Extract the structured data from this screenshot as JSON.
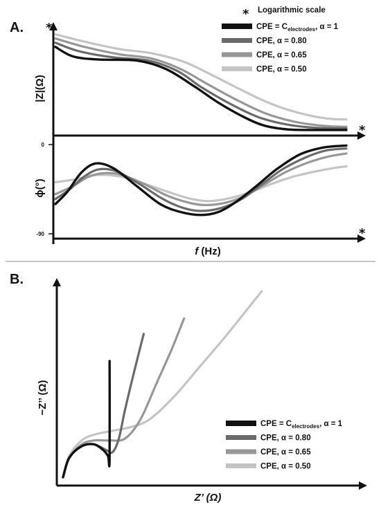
{
  "colors": {
    "alpha1": "#111111",
    "alpha080": "#6a6a6a",
    "alpha065": "#979797",
    "alpha050": "#c4c4c4",
    "axis": "#111111",
    "divider": "#888888"
  },
  "chart_data": [
    {
      "id": "A",
      "type": "line",
      "panel_label": "A.",
      "note_symbol": "*",
      "note_text": "Logarithmic scale",
      "x_label": "f (Hz)",
      "x_label_f": "f",
      "x_label_unit": " (Hz)",
      "x_log_marker": "*",
      "legend": [
        {
          "key": "alpha1",
          "pre": "CPE = C",
          "sub": "electrodes",
          "post": ", α = 1"
        },
        {
          "key": "alpha080",
          "pre": "CPE, α = 0.80",
          "sub": "",
          "post": ""
        },
        {
          "key": "alpha065",
          "pre": "CPE, α = 0.65",
          "sub": "",
          "post": ""
        },
        {
          "key": "alpha050",
          "pre": "CPE, α = 0.50",
          "sub": "",
          "post": ""
        }
      ],
      "magnitude": {
        "y_label": "|Z|(Ω)",
        "y_log_marker": "*",
        "series": [
          {
            "key": "alpha1",
            "points": [
              [
                0,
                0.83
              ],
              [
                0.06,
                0.74
              ],
              [
                0.15,
                0.71
              ],
              [
                0.28,
                0.7
              ],
              [
                0.38,
                0.62
              ],
              [
                0.48,
                0.45
              ],
              [
                0.56,
                0.3
              ],
              [
                0.65,
                0.16
              ],
              [
                0.72,
                0.08
              ],
              [
                0.8,
                0.045
              ],
              [
                0.88,
                0.04
              ],
              [
                1,
                0.04
              ]
            ]
          },
          {
            "key": "alpha080",
            "points": [
              [
                0,
                0.87
              ],
              [
                0.08,
                0.79
              ],
              [
                0.2,
                0.73
              ],
              [
                0.32,
                0.7
              ],
              [
                0.42,
                0.6
              ],
              [
                0.5,
                0.45
              ],
              [
                0.6,
                0.29
              ],
              [
                0.7,
                0.16
              ],
              [
                0.8,
                0.09
              ],
              [
                0.9,
                0.06
              ],
              [
                1,
                0.055
              ]
            ]
          },
          {
            "key": "alpha065",
            "points": [
              [
                0,
                0.91
              ],
              [
                0.1,
                0.83
              ],
              [
                0.22,
                0.76
              ],
              [
                0.33,
                0.72
              ],
              [
                0.43,
                0.62
              ],
              [
                0.52,
                0.48
              ],
              [
                0.62,
                0.33
              ],
              [
                0.72,
                0.2
              ],
              [
                0.82,
                0.12
              ],
              [
                0.92,
                0.08
              ],
              [
                1,
                0.07
              ]
            ]
          },
          {
            "key": "alpha050",
            "points": [
              [
                0,
                0.95
              ],
              [
                0.1,
                0.88
              ],
              [
                0.22,
                0.81
              ],
              [
                0.33,
                0.77
              ],
              [
                0.44,
                0.69
              ],
              [
                0.54,
                0.56
              ],
              [
                0.64,
                0.42
              ],
              [
                0.74,
                0.29
              ],
              [
                0.84,
                0.2
              ],
              [
                0.93,
                0.15
              ],
              [
                1,
                0.14
              ]
            ]
          }
        ]
      },
      "phase": {
        "y_label": "ϕ(°)",
        "y_ticks": [
          "0",
          "-90"
        ],
        "ylim": [
          -90,
          0
        ],
        "series": [
          {
            "key": "alpha1",
            "points": [
              [
                0,
                -60
              ],
              [
                0.04,
                -48
              ],
              [
                0.09,
                -28
              ],
              [
                0.14,
                -19
              ],
              [
                0.2,
                -24
              ],
              [
                0.28,
                -42
              ],
              [
                0.36,
                -60
              ],
              [
                0.43,
                -68
              ],
              [
                0.5,
                -71
              ],
              [
                0.56,
                -68
              ],
              [
                0.62,
                -58
              ],
              [
                0.69,
                -42
              ],
              [
                0.76,
                -25
              ],
              [
                0.84,
                -10
              ],
              [
                0.92,
                -3
              ],
              [
                1,
                -1
              ]
            ]
          },
          {
            "key": "alpha080",
            "points": [
              [
                0,
                -55
              ],
              [
                0.05,
                -45
              ],
              [
                0.1,
                -32
              ],
              [
                0.15,
                -25
              ],
              [
                0.21,
                -27
              ],
              [
                0.29,
                -40
              ],
              [
                0.37,
                -55
              ],
              [
                0.44,
                -64
              ],
              [
                0.5,
                -67
              ],
              [
                0.57,
                -64
              ],
              [
                0.64,
                -55
              ],
              [
                0.71,
                -40
              ],
              [
                0.78,
                -25
              ],
              [
                0.86,
                -13
              ],
              [
                0.93,
                -6
              ],
              [
                1,
                -4
              ]
            ]
          },
          {
            "key": "alpha065",
            "points": [
              [
                0,
                -50
              ],
              [
                0.06,
                -42
              ],
              [
                0.11,
                -33
              ],
              [
                0.16,
                -29
              ],
              [
                0.22,
                -30
              ],
              [
                0.3,
                -39
              ],
              [
                0.38,
                -51
              ],
              [
                0.45,
                -58
              ],
              [
                0.51,
                -61
              ],
              [
                0.58,
                -59
              ],
              [
                0.65,
                -52
              ],
              [
                0.72,
                -40
              ],
              [
                0.79,
                -28
              ],
              [
                0.87,
                -18
              ],
              [
                0.94,
                -12
              ],
              [
                1,
                -9
              ]
            ]
          },
          {
            "key": "alpha050",
            "points": [
              [
                0,
                -38
              ],
              [
                0.07,
                -35
              ],
              [
                0.13,
                -31
              ],
              [
                0.19,
                -31
              ],
              [
                0.25,
                -34
              ],
              [
                0.32,
                -41
              ],
              [
                0.4,
                -49
              ],
              [
                0.47,
                -55
              ],
              [
                0.53,
                -57
              ],
              [
                0.6,
                -54
              ],
              [
                0.67,
                -48
              ],
              [
                0.74,
                -40
              ],
              [
                0.81,
                -33
              ],
              [
                0.88,
                -28
              ],
              [
                0.95,
                -24
              ],
              [
                1,
                -22
              ]
            ]
          }
        ]
      }
    },
    {
      "id": "B",
      "type": "line",
      "panel_label": "B.",
      "x_label": "Z’ (Ω)",
      "y_label": "−Z’’ (Ω)",
      "legend": [
        {
          "key": "alpha1",
          "pre": "CPE = C",
          "sub": "electrodes",
          "post": ", α = 1"
        },
        {
          "key": "alpha080",
          "pre": "CPE, α = 0.80",
          "sub": "",
          "post": ""
        },
        {
          "key": "alpha065",
          "pre": "CPE, α = 0.65",
          "sub": "",
          "post": ""
        },
        {
          "key": "alpha050",
          "pre": "CPE, α = 0.50",
          "sub": "",
          "post": ""
        }
      ],
      "series": [
        {
          "key": "alpha1",
          "points": [
            [
              0.02,
              0.0
            ],
            [
              0.04,
              0.1
            ],
            [
              0.08,
              0.16
            ],
            [
              0.12,
              0.17
            ],
            [
              0.15,
              0.14
            ],
            [
              0.165,
              0.11
            ],
            [
              0.17,
              0.09
            ],
            [
              0.17,
              0.6
            ]
          ]
        },
        {
          "key": "alpha080",
          "points": [
            [
              0.02,
              0.0
            ],
            [
              0.04,
              0.1
            ],
            [
              0.08,
              0.16
            ],
            [
              0.12,
              0.17
            ],
            [
              0.16,
              0.14
            ],
            [
              0.18,
              0.13
            ],
            [
              0.2,
              0.2
            ],
            [
              0.22,
              0.35
            ],
            [
              0.25,
              0.55
            ],
            [
              0.28,
              0.74
            ]
          ]
        },
        {
          "key": "alpha065",
          "points": [
            [
              0.02,
              0.0
            ],
            [
              0.04,
              0.1
            ],
            [
              0.08,
              0.17
            ],
            [
              0.12,
              0.19
            ],
            [
              0.17,
              0.19
            ],
            [
              0.22,
              0.2
            ],
            [
              0.27,
              0.3
            ],
            [
              0.32,
              0.48
            ],
            [
              0.37,
              0.66
            ],
            [
              0.41,
              0.82
            ]
          ]
        },
        {
          "key": "alpha050",
          "points": [
            [
              0.02,
              0.0
            ],
            [
              0.04,
              0.11
            ],
            [
              0.08,
              0.19
            ],
            [
              0.12,
              0.22
            ],
            [
              0.18,
              0.24
            ],
            [
              0.24,
              0.26
            ],
            [
              0.3,
              0.3
            ],
            [
              0.38,
              0.42
            ],
            [
              0.46,
              0.57
            ],
            [
              0.54,
              0.72
            ],
            [
              0.61,
              0.86
            ],
            [
              0.66,
              0.96
            ]
          ]
        }
      ]
    }
  ]
}
